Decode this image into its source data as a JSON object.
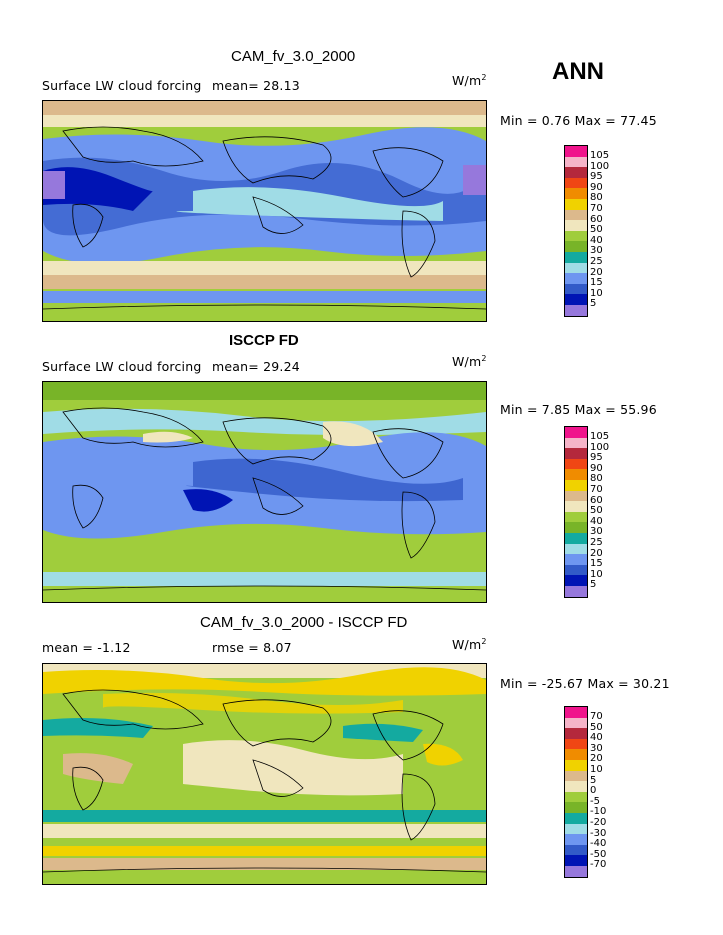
{
  "season": "ANN",
  "panels": [
    {
      "title": "CAM_fv_3.0_2000",
      "subtitle": "Surface LW cloud forcing",
      "mean_text": "mean=  28.13",
      "units": "W/m",
      "units_sup": "2",
      "minmax": "Min =   0.76 Max =  77.45",
      "legend_labels": [
        "105",
        "100",
        "95",
        "90",
        "80",
        "70",
        "60",
        "50",
        "40",
        "30",
        "25",
        "20",
        "15",
        "10",
        "5"
      ],
      "colors": [
        "#f0148c",
        "#f5b4c8",
        "#b4283c",
        "#f04614",
        "#f08c00",
        "#f0d200",
        "#dcb98c",
        "#f0e6be",
        "#a0cd3c",
        "#78b428",
        "#14aaa0",
        "#a0dce6",
        "#6e96f0",
        "#325ac8",
        "#0014b4",
        "#9678dc"
      ]
    },
    {
      "title": "ISCCP FD",
      "subtitle": "Surface LW cloud forcing",
      "mean_text": "mean=  29.24",
      "units": "W/m",
      "units_sup": "2",
      "minmax": "Min =   7.85 Max =  55.96",
      "legend_labels": [
        "105",
        "100",
        "95",
        "90",
        "80",
        "70",
        "60",
        "50",
        "40",
        "30",
        "25",
        "20",
        "15",
        "10",
        "5"
      ],
      "colors": [
        "#f0148c",
        "#f5b4c8",
        "#b4283c",
        "#f04614",
        "#f08c00",
        "#f0d200",
        "#dcb98c",
        "#f0e6be",
        "#a0cd3c",
        "#78b428",
        "#14aaa0",
        "#a0dce6",
        "#6e96f0",
        "#325ac8",
        "#0014b4",
        "#9678dc"
      ]
    },
    {
      "title": "CAM_fv_3.0_2000 - ISCCP FD",
      "mean_text": "mean =  -1.12",
      "rmse_text": "rmse =   8.07",
      "units": "W/m",
      "units_sup": "2",
      "minmax": "Min = -25.67 Max =  30.21",
      "legend_labels": [
        "70",
        "50",
        "40",
        "30",
        "20",
        "10",
        "5",
        "0",
        "-5",
        "-10",
        "-20",
        "-30",
        "-40",
        "-50",
        "-70"
      ],
      "colors": [
        "#f0148c",
        "#f5b4c8",
        "#b4283c",
        "#f04614",
        "#f08c00",
        "#f0d200",
        "#dcb98c",
        "#f0e6be",
        "#a0cd3c",
        "#78b428",
        "#14aaa0",
        "#a0dce6",
        "#6e96f0",
        "#325ac8",
        "#0014b4",
        "#9678dc"
      ]
    }
  ]
}
